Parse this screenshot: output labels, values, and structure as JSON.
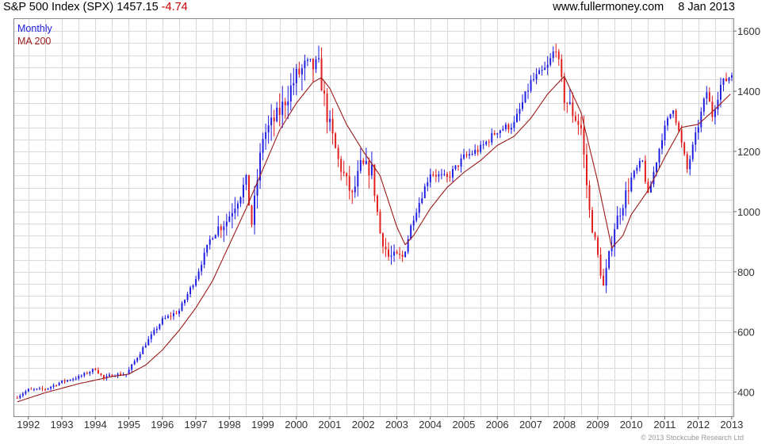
{
  "header": {
    "title": "S&P 500 Index (SPX)",
    "price": "1457.15",
    "change": "-4.74",
    "website": "www.fullermoney.com",
    "date": "8 Jan 2013"
  },
  "copyright": "© 2013 Stockcube Research Ltd",
  "colors": {
    "up": "#1a1ae0",
    "down": "#e21a1a",
    "ma": "#9b1a1a",
    "grid": "#d9d9d9"
  },
  "chart_data": {
    "type": "candlestick",
    "frequency_label": "Monthly",
    "ma_label": "MA 200",
    "ylim": [
      320,
      1640
    ],
    "yticks": [
      400,
      600,
      800,
      1000,
      1200,
      1400,
      1600
    ],
    "x_range": [
      1991.58,
      2013.05
    ],
    "xticks": [
      "1992",
      "1993",
      "1994",
      "1995",
      "1996",
      "1997",
      "1998",
      "1999",
      "2000",
      "2001",
      "2002",
      "2003",
      "2004",
      "2005",
      "2006",
      "2007",
      "2008",
      "2009",
      "2010",
      "2011",
      "2012",
      "2013"
    ],
    "close_anchors": [
      [
        1991.67,
        385
      ],
      [
        1992.0,
        408
      ],
      [
        1992.5,
        410
      ],
      [
        1993.0,
        435
      ],
      [
        1993.5,
        450
      ],
      [
        1994.0,
        478
      ],
      [
        1994.25,
        445
      ],
      [
        1994.5,
        458
      ],
      [
        1994.92,
        459
      ],
      [
        1995.5,
        560
      ],
      [
        1996.0,
        640
      ],
      [
        1996.5,
        670
      ],
      [
        1997.0,
        780
      ],
      [
        1997.5,
        930
      ],
      [
        1997.92,
        970
      ],
      [
        1998.5,
        1100
      ],
      [
        1998.67,
        960
      ],
      [
        1999.0,
        1250
      ],
      [
        1999.5,
        1330
      ],
      [
        2000.0,
        1450
      ],
      [
        2000.25,
        1480
      ],
      [
        2000.67,
        1480
      ],
      [
        2000.92,
        1320
      ],
      [
        2001.25,
        1170
      ],
      [
        2001.67,
        1050
      ],
      [
        2001.92,
        1150
      ],
      [
        2002.25,
        1140
      ],
      [
        2002.5,
        930
      ],
      [
        2002.75,
        850
      ],
      [
        2003.17,
        848
      ],
      [
        2003.5,
        980
      ],
      [
        2004.0,
        1130
      ],
      [
        2004.5,
        1110
      ],
      [
        2005.0,
        1180
      ],
      [
        2005.5,
        1210
      ],
      [
        2006.0,
        1270
      ],
      [
        2006.5,
        1290
      ],
      [
        2007.0,
        1430
      ],
      [
        2007.5,
        1480
      ],
      [
        2007.75,
        1550
      ],
      [
        2008.0,
        1380
      ],
      [
        2008.5,
        1280
      ],
      [
        2008.75,
        1000
      ],
      [
        2008.92,
        900
      ],
      [
        2009.17,
        750
      ],
      [
        2009.5,
        950
      ],
      [
        2010.0,
        1110
      ],
      [
        2010.33,
        1170
      ],
      [
        2010.5,
        1050
      ],
      [
        2010.92,
        1250
      ],
      [
        2011.25,
        1350
      ],
      [
        2011.67,
        1140
      ],
      [
        2011.92,
        1250
      ],
      [
        2012.25,
        1400
      ],
      [
        2012.42,
        1320
      ],
      [
        2012.67,
        1420
      ],
      [
        2013.0,
        1457
      ]
    ],
    "ma_anchors": [
      [
        1991.67,
        368
      ],
      [
        1992.5,
        398
      ],
      [
        1993.5,
        428
      ],
      [
        1994.5,
        452
      ],
      [
        1995.0,
        460
      ],
      [
        1995.5,
        490
      ],
      [
        1996.0,
        540
      ],
      [
        1996.5,
        605
      ],
      [
        1997.0,
        680
      ],
      [
        1997.5,
        770
      ],
      [
        1998.0,
        890
      ],
      [
        1998.5,
        1010
      ],
      [
        1999.0,
        1140
      ],
      [
        1999.5,
        1270
      ],
      [
        2000.0,
        1360
      ],
      [
        2000.5,
        1430
      ],
      [
        2000.75,
        1445
      ],
      [
        2001.0,
        1410
      ],
      [
        2001.5,
        1290
      ],
      [
        2002.0,
        1200
      ],
      [
        2002.5,
        1120
      ],
      [
        2003.0,
        950
      ],
      [
        2003.25,
        890
      ],
      [
        2003.5,
        920
      ],
      [
        2004.0,
        1010
      ],
      [
        2004.5,
        1080
      ],
      [
        2005.0,
        1130
      ],
      [
        2005.5,
        1170
      ],
      [
        2006.0,
        1220
      ],
      [
        2006.5,
        1250
      ],
      [
        2007.0,
        1310
      ],
      [
        2007.5,
        1390
      ],
      [
        2008.0,
        1450
      ],
      [
        2008.5,
        1330
      ],
      [
        2009.0,
        1100
      ],
      [
        2009.42,
        880
      ],
      [
        2009.75,
        920
      ],
      [
        2010.0,
        990
      ],
      [
        2010.5,
        1070
      ],
      [
        2011.0,
        1180
      ],
      [
        2011.5,
        1280
      ],
      [
        2012.0,
        1290
      ],
      [
        2012.5,
        1340
      ],
      [
        2013.0,
        1395
      ]
    ]
  }
}
